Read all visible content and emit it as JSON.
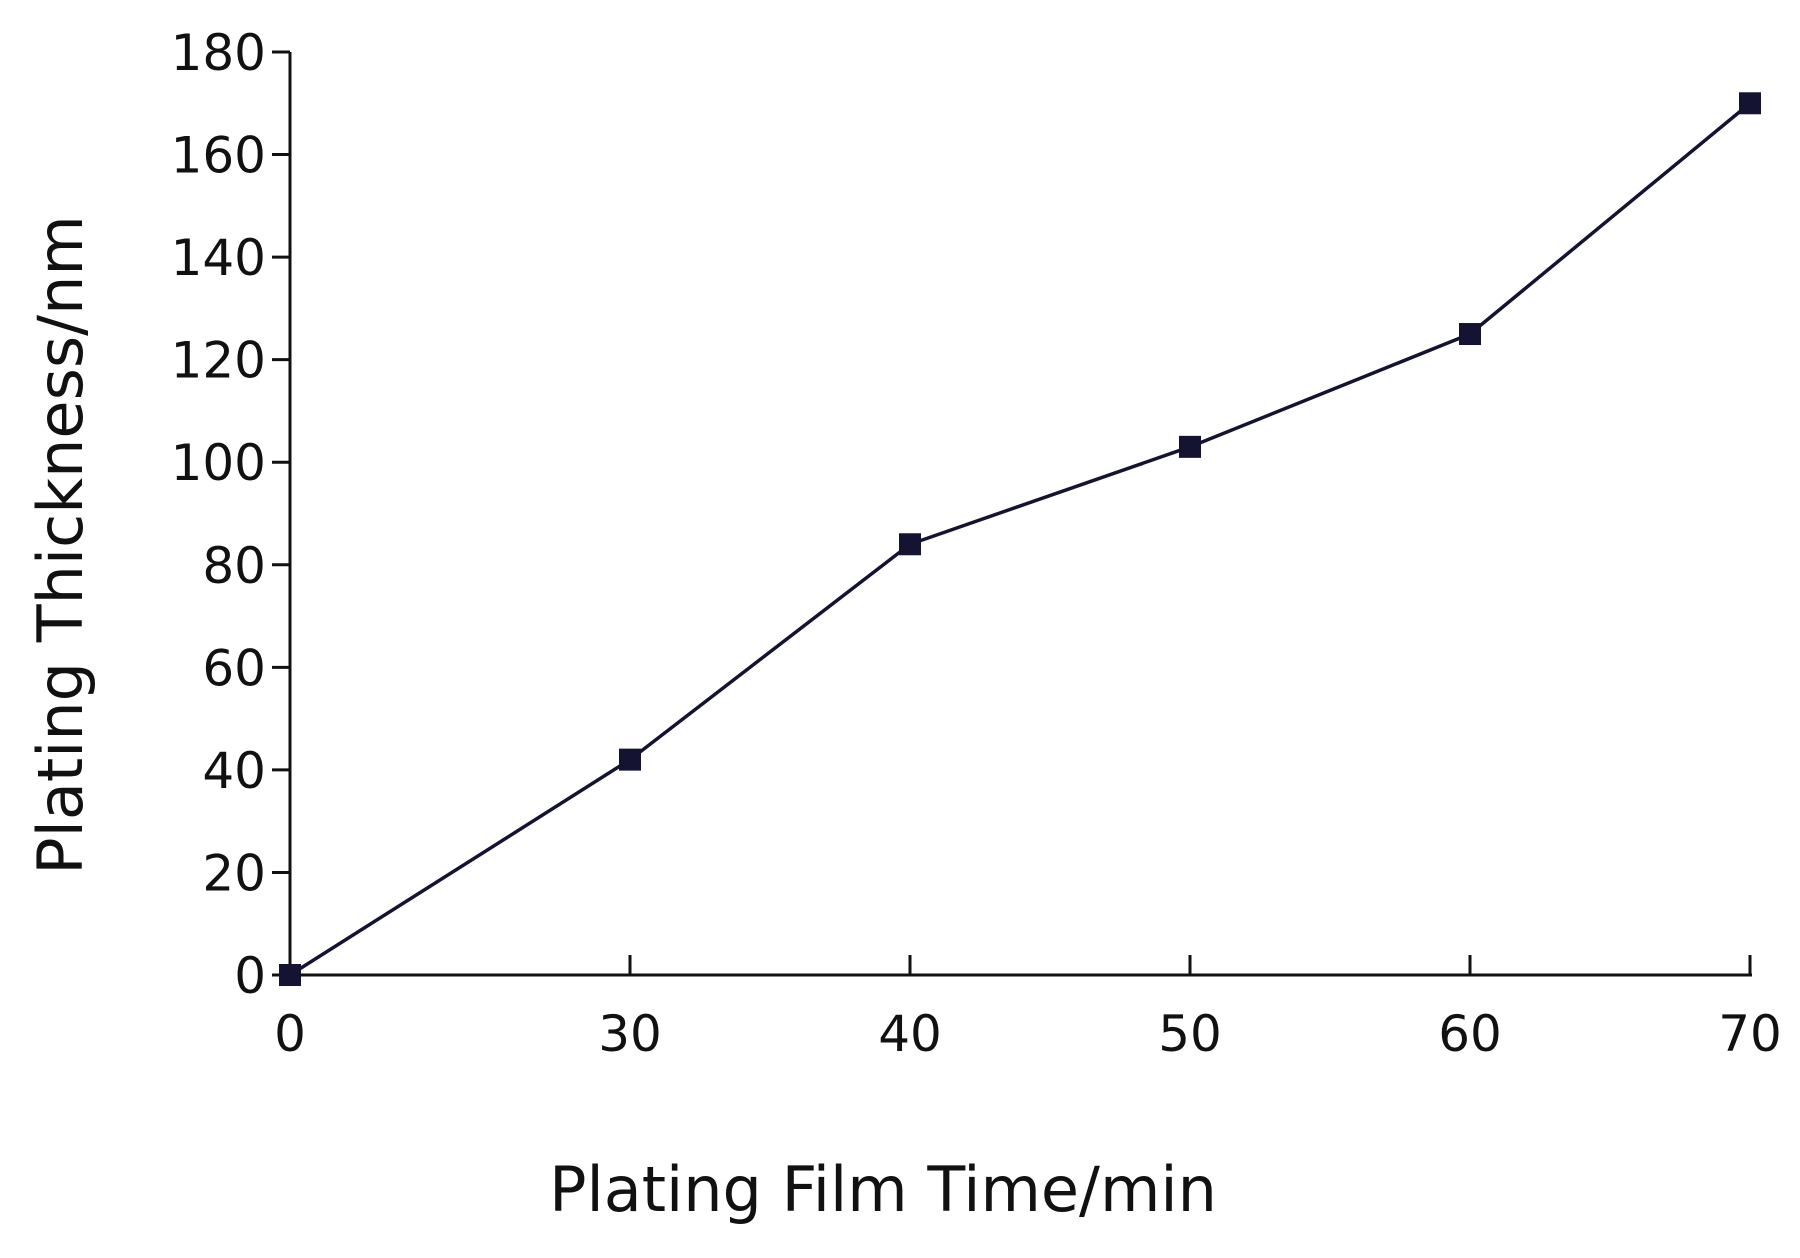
{
  "chart_data": {
    "type": "line",
    "title": "",
    "xlabel": "Plating Film Time/min",
    "ylabel": "Plating Thickness/nm",
    "x_categories": [
      "0",
      "30",
      "40",
      "50",
      "60",
      "70"
    ],
    "y_ticks": [
      0,
      20,
      40,
      60,
      80,
      100,
      120,
      140,
      160,
      180
    ],
    "ylim": [
      0,
      180
    ],
    "grid": false,
    "legend": "none",
    "colors": {
      "series": "#141432",
      "axis": "#111111"
    },
    "series": [
      {
        "marker": "square",
        "points": [
          {
            "x": "0",
            "y": 0
          },
          {
            "x": "30",
            "y": 42
          },
          {
            "x": "40",
            "y": 84
          },
          {
            "x": "50",
            "y": 103
          },
          {
            "x": "60",
            "y": 125
          },
          {
            "x": "70",
            "y": 170
          }
        ]
      }
    ]
  }
}
